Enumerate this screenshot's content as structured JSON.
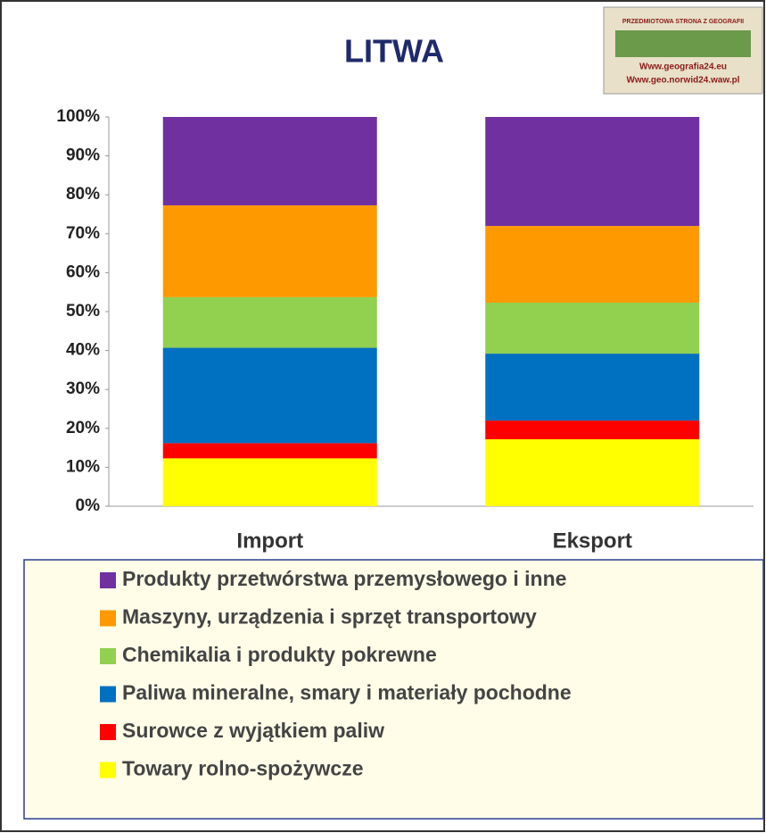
{
  "chart_data": {
    "type": "stacked_bar",
    "title": "LITWA",
    "categories": [
      "Import",
      "Eksport"
    ],
    "series": [
      {
        "name": "Produkty przetwórstwa przemysłowego i inne",
        "color": "#7030a0",
        "values": [
          22.7,
          28.0
        ]
      },
      {
        "name": "Maszyny, urządzenia i sprzęt transportowy",
        "color": "#ff9900",
        "values": [
          23.6,
          19.7
        ]
      },
      {
        "name": "Chemikalia i produkty pokrewne",
        "color": "#92d050",
        "values": [
          13.0,
          13.1
        ]
      },
      {
        "name": "Paliwa mineralne, smary i materiały pochodne",
        "color": "#0070c0",
        "values": [
          24.5,
          17.2
        ]
      },
      {
        "name": "Surowce z wyjątkiem paliw",
        "color": "#ff0000",
        "values": [
          3.9,
          4.8
        ]
      },
      {
        "name": "Towary  rolno-spożywcze",
        "color": "#ffff00",
        "values": [
          12.3,
          17.2
        ]
      }
    ],
    "ylim": [
      0,
      100
    ],
    "yticks": [
      {
        "value": 0,
        "label": "0%"
      },
      {
        "value": 10,
        "label": "10%"
      },
      {
        "value": 20,
        "label": "20%"
      },
      {
        "value": 30,
        "label": "30%"
      },
      {
        "value": 40,
        "label": "40%"
      },
      {
        "value": 50,
        "label": "50%"
      },
      {
        "value": 60,
        "label": "60%"
      },
      {
        "value": 70,
        "label": "70%"
      },
      {
        "value": 80,
        "label": "80%"
      },
      {
        "value": 90,
        "label": "90%"
      },
      {
        "value": 100,
        "label": "100%"
      }
    ],
    "grid": false
  },
  "logo": {
    "lines": [
      "PRZEDMIOTOWA STRONA Z GEOGRAFII",
      "Www.geografia24.eu",
      "Www.geo.norwid24.waw.pl"
    ]
  }
}
